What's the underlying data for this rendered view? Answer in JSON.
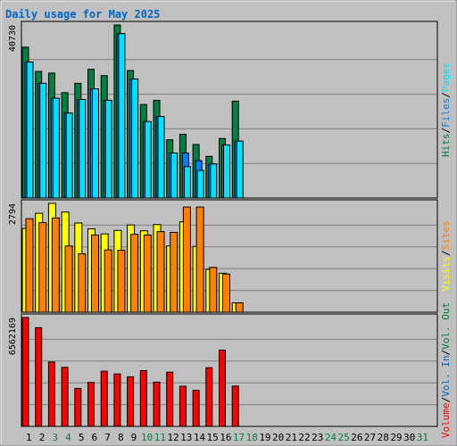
{
  "chart_data": {
    "type": "bar",
    "title": "Daily usage for May 2025",
    "days": [
      "1",
      "2",
      "3",
      "4",
      "5",
      "6",
      "7",
      "8",
      "9",
      "10",
      "11",
      "12",
      "13",
      "14",
      "15",
      "16",
      "17",
      "18",
      "19",
      "20",
      "21",
      "22",
      "23",
      "24",
      "25",
      "26",
      "27",
      "28",
      "29",
      "30",
      "31"
    ],
    "weekend_days": [
      "3",
      "4",
      "10",
      "11",
      "17",
      "18",
      "24",
      "25",
      "31"
    ],
    "colors": {
      "title": "#0066cc",
      "weekday_label": "#000000",
      "weekend_label": "#008040",
      "hits": "#008040",
      "files": "#0080ff",
      "pages": "#00e0ff",
      "visits": "#ffff00",
      "sites": "#ff8000",
      "volume": "#ff0000",
      "vol_in": "#0066cc",
      "vol_out": "#008040"
    },
    "panels": [
      {
        "name": "hits-files-pages",
        "ymax_label": "40730",
        "ymax": 40730,
        "series_labels": [
          "Hits",
          "Files",
          "Pages"
        ],
        "series": [
          {
            "name": "Hits",
            "values": [
              35500,
              29800,
              29400,
              24800,
              27000,
              30300,
              28800,
              40730,
              30000,
              22000,
              23000,
              13700,
              15000,
              12600,
              9800,
              14000,
              22800
            ]
          },
          {
            "name": "Files",
            "values": [
              32000,
              27000,
              23500,
              20000,
              23200,
              25700,
              23000,
              38700,
              28000,
              18000,
              19200,
              10600,
              10600,
              8800,
              8000,
              12500,
              13400
            ]
          },
          {
            "name": "Pages",
            "values": [
              32000,
              27000,
              23500,
              20000,
              23200,
              25700,
              23000,
              38700,
              28000,
              18000,
              19200,
              10600,
              7400,
              6500,
              8000,
              12500,
              13400
            ]
          }
        ]
      },
      {
        "name": "visits-sites",
        "ymax_label": "2794",
        "ymax": 2794,
        "series_labels": [
          "Visits",
          "Sites"
        ],
        "series": [
          {
            "name": "Visits",
            "values": [
              2150,
              2540,
              2794,
              2570,
              2290,
              2140,
              2010,
              2100,
              2240,
              2090,
              2250,
              1700,
              2320,
              1690,
              1100,
              1000,
              240
            ]
          },
          {
            "name": "Sites",
            "values": [
              2400,
              2300,
              2420,
              1700,
              1500,
              1980,
              1600,
              1590,
              2000,
              1980,
              2070,
              2050,
              2700,
              2700,
              1150,
              980,
              240
            ]
          }
        ]
      },
      {
        "name": "volume",
        "ymax_label": "6562169",
        "ymax": 6562169,
        "series_labels": [
          "Volume",
          "Vol. In",
          "Vol. Out"
        ],
        "series": [
          {
            "name": "Volume",
            "values": [
              6562169,
              5950000,
              3880000,
              3560000,
              2290000,
              2650000,
              3330000,
              3160000,
              2990000,
              3360000,
              2670000,
              3270000,
              2420000,
              2170000,
              3540000,
              4600000,
              2430000
            ]
          }
        ]
      }
    ],
    "grid": true,
    "legend": "right"
  }
}
